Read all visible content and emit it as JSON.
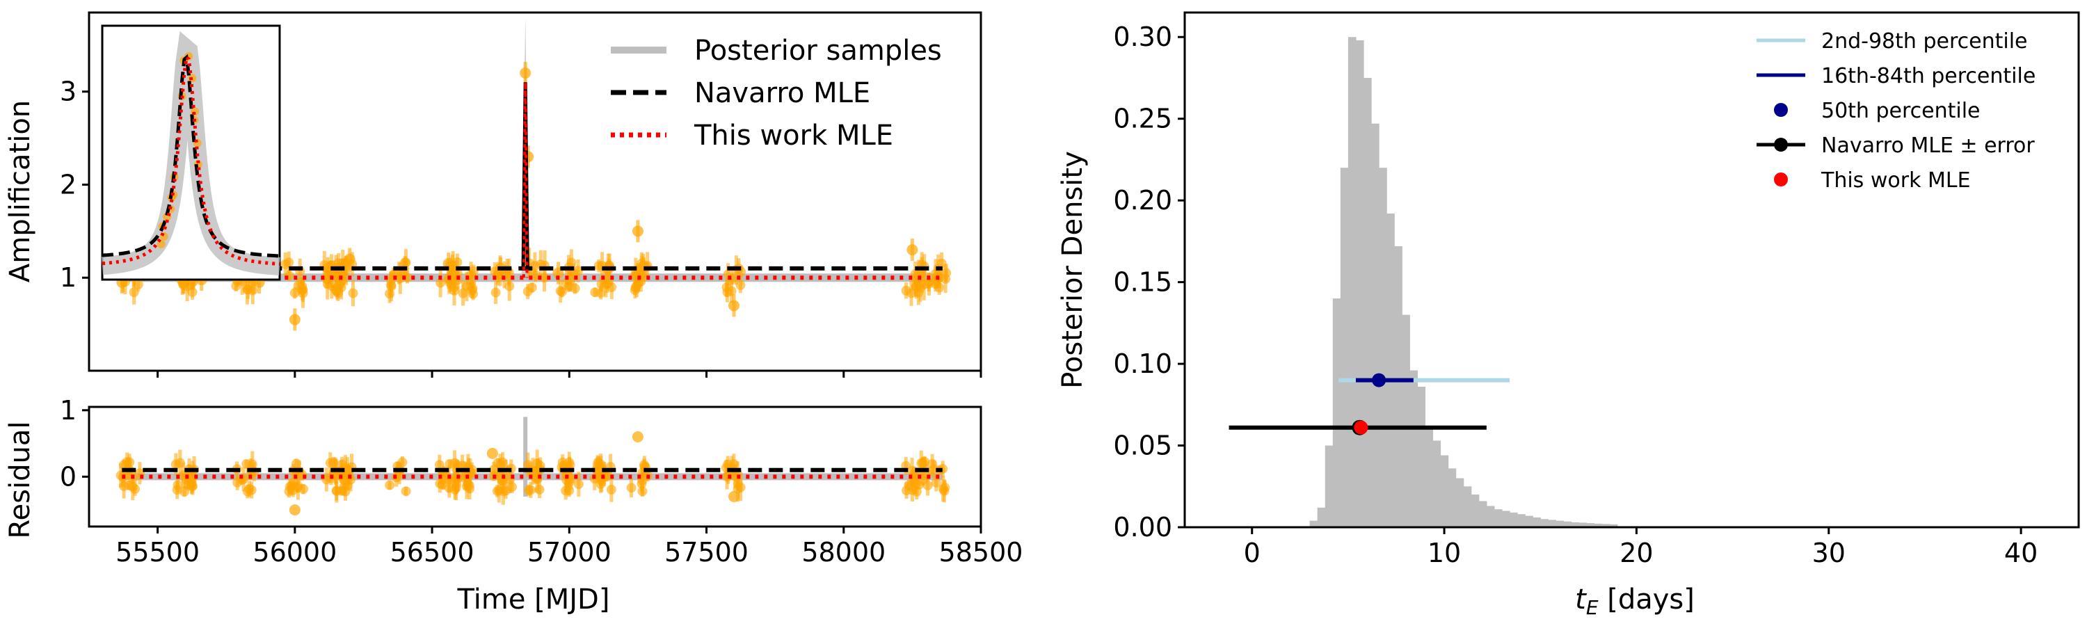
{
  "chart_data": [
    {
      "id": "lightcurve",
      "type": "scatter",
      "ylabel": "Amplification",
      "xlim": [
        55250,
        58500
      ],
      "ylim": [
        0.0,
        3.85
      ],
      "xticks": [
        55500,
        56000,
        56500,
        57000,
        57500,
        58000,
        58500
      ],
      "yticks": [
        1,
        2,
        3
      ],
      "legend": {
        "placement": "top-right",
        "entries": [
          "Posterior samples",
          "Navarro MLE",
          "This work MLE"
        ]
      },
      "models": {
        "navarro_baseline": 1.1,
        "thiswork_baseline": 1.0,
        "peak_time": 56840,
        "peak_value": 3.1
      },
      "data_points_sample": [
        {
          "x": 55370,
          "y": 0.95
        },
        {
          "x": 55450,
          "y": 1.08
        },
        {
          "x": 55600,
          "y": 1.05
        },
        {
          "x": 55660,
          "y": 0.98
        },
        {
          "x": 55790,
          "y": 1.12
        },
        {
          "x": 55870,
          "y": 0.95
        },
        {
          "x": 56000,
          "y": 0.55
        },
        {
          "x": 56120,
          "y": 1.1
        },
        {
          "x": 56200,
          "y": 1.2
        },
        {
          "x": 56380,
          "y": 1.05
        },
        {
          "x": 56560,
          "y": 1.15
        },
        {
          "x": 56750,
          "y": 1.1
        },
        {
          "x": 56840,
          "y": 3.2
        },
        {
          "x": 56850,
          "y": 2.3
        },
        {
          "x": 56960,
          "y": 1.05
        },
        {
          "x": 57250,
          "y": 1.5
        },
        {
          "x": 57600,
          "y": 0.7
        },
        {
          "x": 58250,
          "y": 1.3
        },
        {
          "x": 58340,
          "y": 1.0
        }
      ],
      "inset": {
        "description": "zoom of peak",
        "peak_value": 3.5
      }
    },
    {
      "id": "residual",
      "type": "scatter",
      "ylabel": "Residual",
      "xlabel": "Time [MJD]",
      "xlim": [
        55250,
        58500
      ],
      "ylim": [
        -0.75,
        1.05
      ],
      "xticks": [
        55500,
        56000,
        56500,
        57000,
        57500,
        58000,
        58500
      ],
      "yticks": [
        0,
        1
      ],
      "navarro_offset": 0.1,
      "thiswork_offset": 0.0
    },
    {
      "id": "tE_posterior",
      "type": "bar",
      "xlabel_main": "t",
      "xlabel_sub": "E",
      "xlabel_rest": " [days]",
      "ylabel": "Posterior Density",
      "xlim": [
        -3.5,
        43
      ],
      "ylim": [
        0.0,
        0.315
      ],
      "xticks": [
        0,
        10,
        20,
        30,
        40
      ],
      "yticks": [
        "0.00",
        "0.05",
        "0.10",
        "0.15",
        "0.20",
        "0.25",
        "0.30"
      ],
      "hist_bin_start": 3.0,
      "hist_bin_width": 0.4,
      "hist_values": [
        0.004,
        0.012,
        0.05,
        0.14,
        0.22,
        0.3,
        0.298,
        0.275,
        0.247,
        0.22,
        0.192,
        0.172,
        0.13,
        0.096,
        0.086,
        0.062,
        0.053,
        0.044,
        0.036,
        0.03,
        0.025,
        0.02,
        0.016,
        0.013,
        0.011,
        0.01,
        0.009,
        0.008,
        0.007,
        0.006,
        0.005,
        0.0045,
        0.004,
        0.0035,
        0.003,
        0.0028,
        0.0025,
        0.0022,
        0.002,
        0.0018
      ],
      "percentile_2_98": [
        4.5,
        13.4
      ],
      "percentile_16_84": [
        5.4,
        8.4
      ],
      "percentile_50": 6.6,
      "percentile_y": 0.09,
      "navarro_mle": 5.6,
      "navarro_err": [
        -1.2,
        12.2
      ],
      "thiswork_mle": 5.6,
      "mle_y": 0.061,
      "legend": {
        "placement": "top-right",
        "entries": [
          "2nd-98th percentile",
          "16th-84th percentile",
          "50th percentile",
          "Navarro MLE ± error",
          "This work MLE"
        ]
      }
    }
  ],
  "colors": {
    "data": "#FFA500",
    "posterior": "#BEBEBE",
    "navarro": "#000000",
    "thiswork": "#FF0000",
    "p2_98": "#ADD8E6",
    "p16_84": "#00008B",
    "p50": "#00008B"
  }
}
